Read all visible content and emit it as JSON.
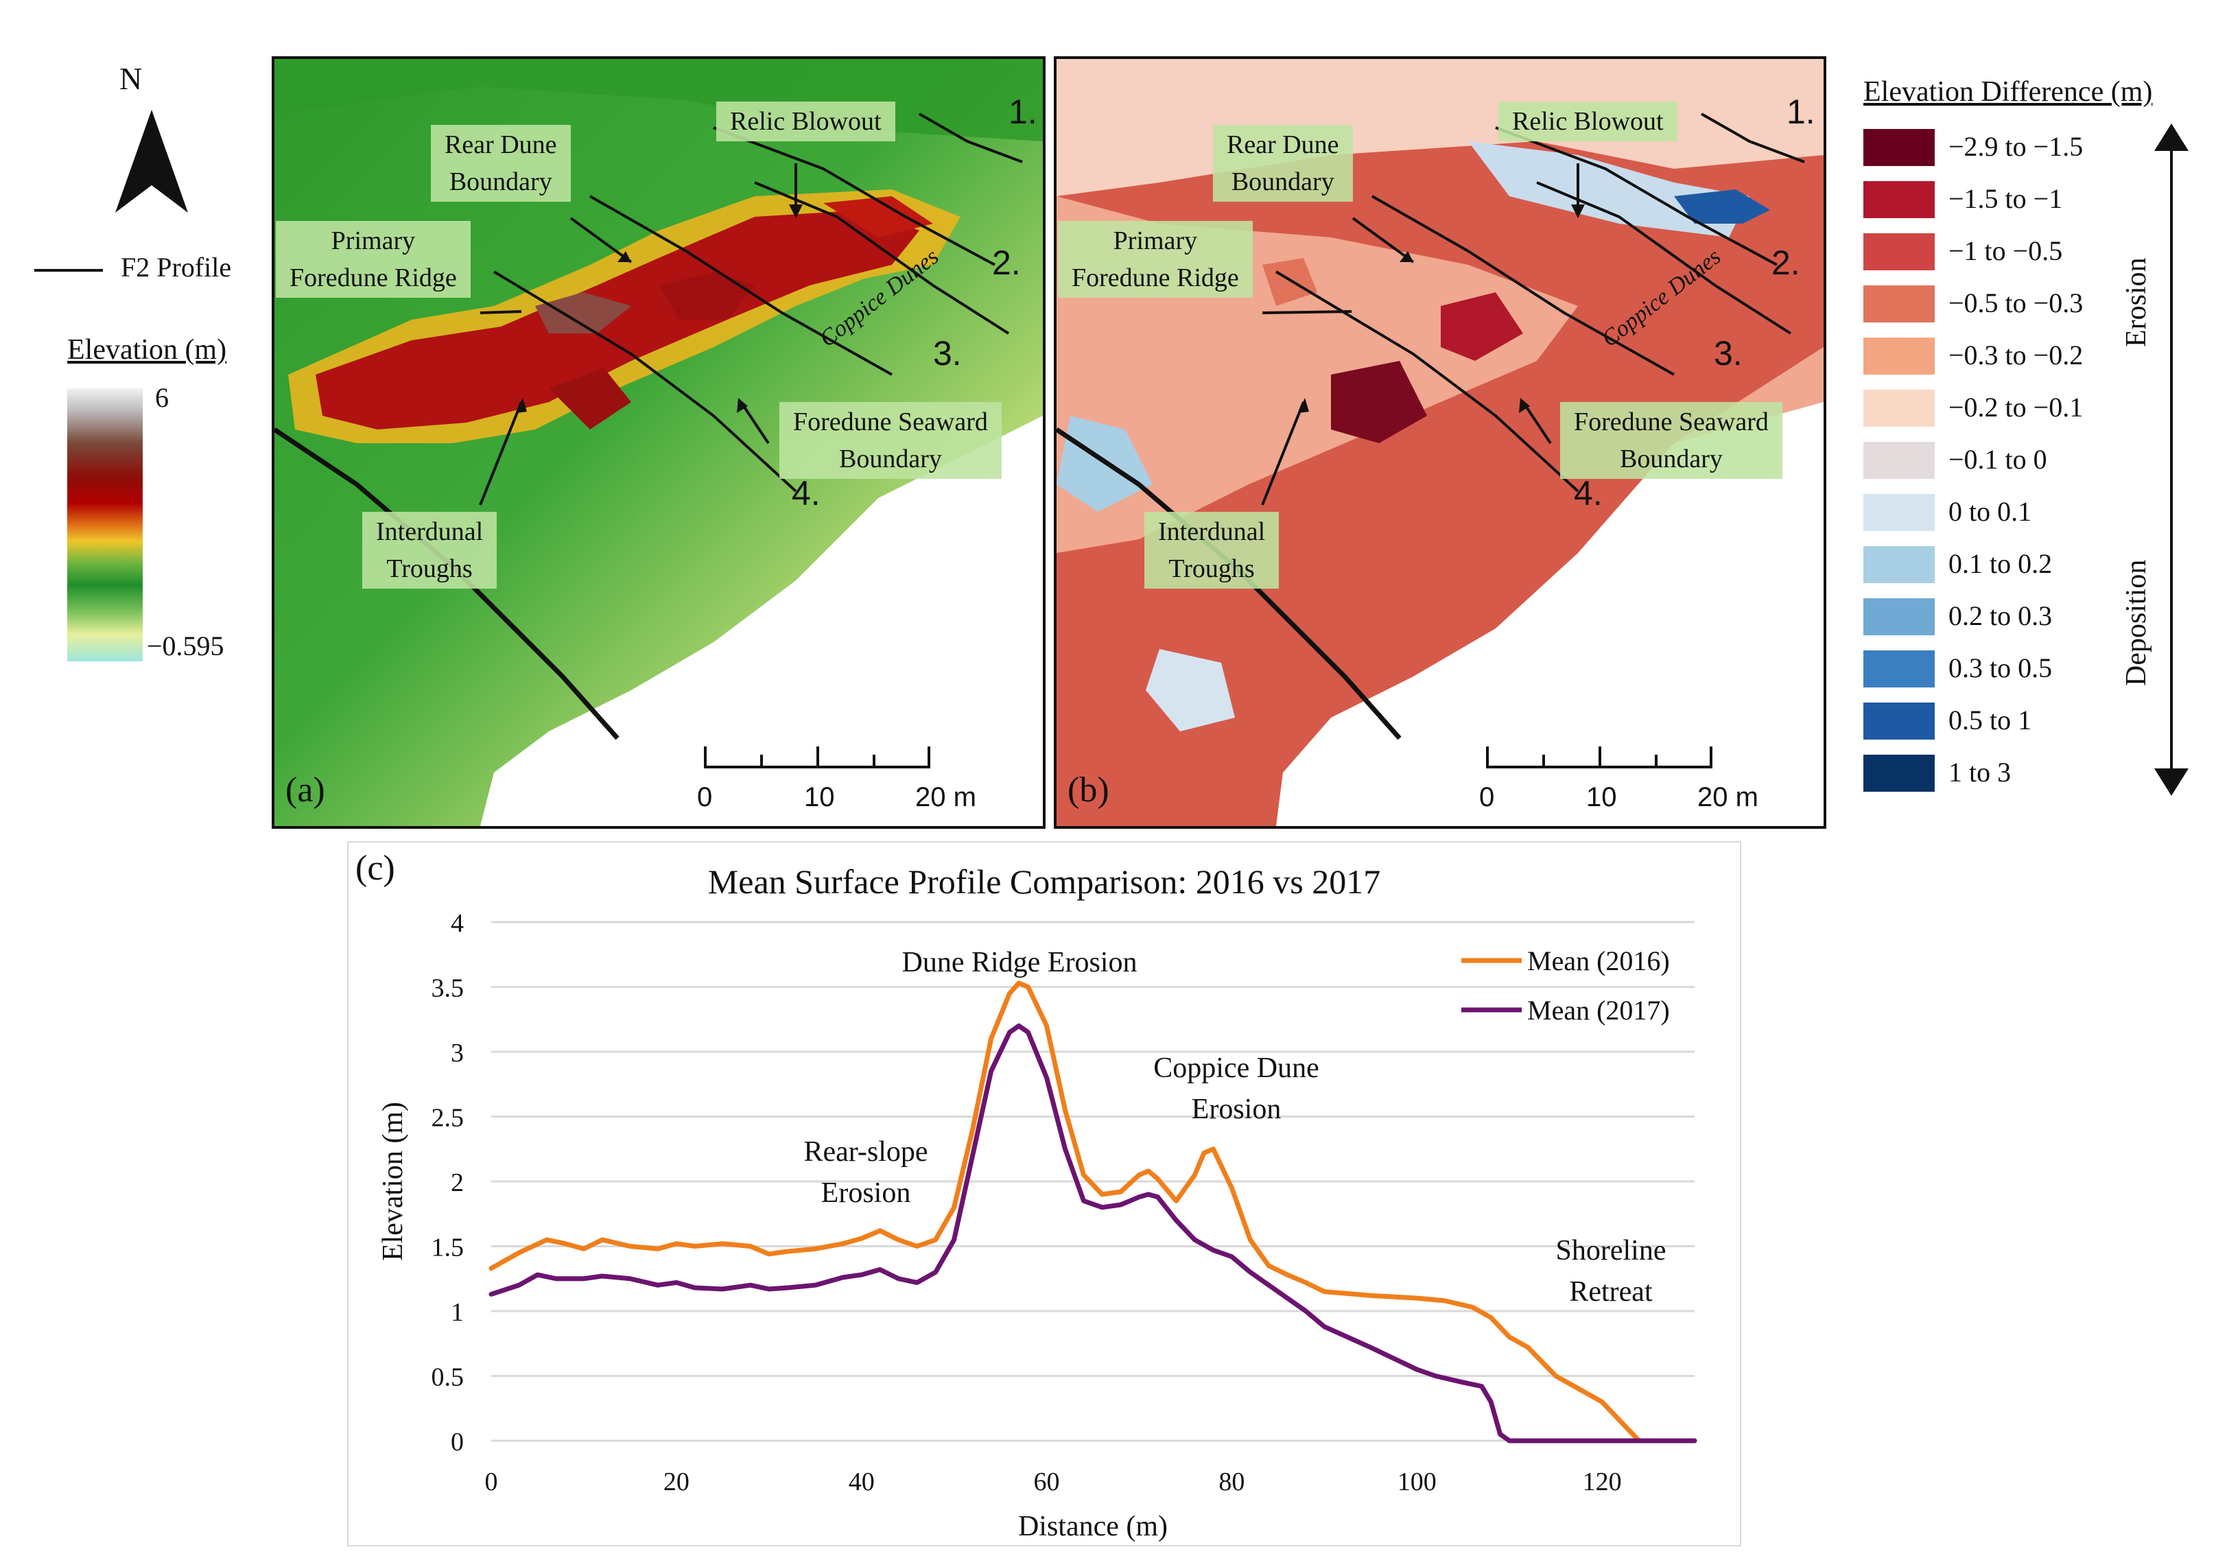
{
  "north": {
    "label": "N"
  },
  "f2_profile": {
    "label": "F2 Profile"
  },
  "elevation_legend": {
    "title": "Elevation (m)",
    "max": "6",
    "min": "−0.595"
  },
  "panel_a": {
    "letter": "(a)",
    "labels": {
      "relic_blowout": "Relic Blowout",
      "rear_dune_line1": "Rear Dune",
      "rear_dune_line2": "Boundary",
      "primary_line1": "Primary",
      "primary_line2": "Foredune Ridge",
      "coppice": "Coppice Dunes",
      "foredune_line1": "Foredune Seaward",
      "foredune_line2": "Boundary",
      "interdunal_line1": "Interdunal",
      "interdunal_line2": "Troughs"
    },
    "profiles": [
      "1.",
      "2.",
      "3.",
      "4."
    ],
    "scale": {
      "ticks": [
        "0",
        "10",
        "20 m"
      ]
    }
  },
  "panel_b": {
    "letter": "(b)",
    "labels": {
      "relic_blowout": "Relic Blowout",
      "rear_dune_line1": "Rear Dune",
      "rear_dune_line2": "Boundary",
      "primary_line1": "Primary",
      "primary_line2": "Foredune Ridge",
      "coppice": "Coppice Dunes",
      "foredune_line1": "Foredune Seaward",
      "foredune_line2": "Boundary",
      "interdunal_line1": "Interdunal",
      "interdunal_line2": "Troughs"
    },
    "profiles": [
      "1.",
      "2.",
      "3.",
      "4."
    ],
    "scale": {
      "ticks": [
        "0",
        "10",
        "20 m"
      ]
    }
  },
  "diff_legend": {
    "title": "Elevation Difference (m)",
    "erosion_label": "Erosion",
    "deposition_label": "Deposition",
    "classes": [
      {
        "label": "−2.9 to −1.5",
        "color": "#67001f"
      },
      {
        "label": "−1.5 to −1",
        "color": "#b2182b"
      },
      {
        "label": "−1 to −0.5",
        "color": "#cf4444"
      },
      {
        "label": "−0.5 to −0.3",
        "color": "#e0735a"
      },
      {
        "label": "−0.3 to −0.2",
        "color": "#f4a582"
      },
      {
        "label": "−0.2 to −0.1",
        "color": "#fad8c6"
      },
      {
        "label": "−0.1 to 0",
        "color": "#e4dcdc"
      },
      {
        "label": "0 to 0.1",
        "color": "#d6e4f0"
      },
      {
        "label": "0.1 to 0.2",
        "color": "#a9cfe5"
      },
      {
        "label": "0.2 to 0.3",
        "color": "#6fa9d4"
      },
      {
        "label": "0.3 to 0.5",
        "color": "#3a7fc0"
      },
      {
        "label": "0.5 to 1",
        "color": "#1e5aa3"
      },
      {
        "label": "1 to 3",
        "color": "#083264"
      }
    ]
  },
  "chart_data": {
    "type": "line",
    "panel_letter": "(c)",
    "title": "Mean Surface Profile Comparison: 2016 vs 2017",
    "xlabel": "Distance (m)",
    "ylabel": "Elevation (m)",
    "xlim": [
      0,
      130
    ],
    "ylim": [
      0,
      4
    ],
    "xticks": [
      0,
      20,
      40,
      60,
      80,
      100,
      120
    ],
    "yticks": [
      0,
      0.5,
      1,
      1.5,
      2,
      2.5,
      3,
      3.5,
      4
    ],
    "ytick_labels": [
      "0",
      "0.5",
      "1",
      "1.5",
      "2",
      "2.5",
      "3",
      "3.5",
      "4"
    ],
    "grid": "horizontal",
    "legend_position": "top-right",
    "series": [
      {
        "name": "Mean (2016)",
        "color": "#f07f1b",
        "x": [
          0,
          3,
          6,
          8,
          10,
          12,
          15,
          18,
          20,
          22,
          25,
          28,
          30,
          32,
          35,
          38,
          40,
          42,
          44,
          46,
          48,
          50,
          52,
          54,
          56,
          57,
          58,
          60,
          62,
          64,
          66,
          68,
          70,
          71,
          72,
          74,
          76,
          77,
          78,
          80,
          82,
          84,
          86,
          88,
          90,
          95,
          100,
          103,
          106,
          108,
          110,
          112,
          115,
          118,
          120,
          122,
          124,
          126,
          130
        ],
        "values": [
          1.33,
          1.45,
          1.55,
          1.52,
          1.48,
          1.55,
          1.5,
          1.48,
          1.52,
          1.5,
          1.52,
          1.5,
          1.44,
          1.46,
          1.48,
          1.52,
          1.56,
          1.62,
          1.55,
          1.5,
          1.55,
          1.8,
          2.4,
          3.1,
          3.45,
          3.53,
          3.5,
          3.2,
          2.55,
          2.05,
          1.9,
          1.92,
          2.05,
          2.08,
          2.02,
          1.85,
          2.05,
          2.22,
          2.25,
          1.95,
          1.55,
          1.35,
          1.28,
          1.22,
          1.15,
          1.12,
          1.1,
          1.08,
          1.03,
          0.95,
          0.8,
          0.72,
          0.5,
          0.38,
          0.3,
          0.15,
          0.0,
          0.0,
          0.0
        ]
      },
      {
        "name": "Mean (2017)",
        "color": "#6b1470",
        "x": [
          0,
          3,
          5,
          7,
          10,
          12,
          15,
          18,
          20,
          22,
          25,
          28,
          30,
          32,
          35,
          38,
          40,
          42,
          44,
          46,
          48,
          50,
          52,
          54,
          56,
          57,
          58,
          60,
          62,
          64,
          66,
          68,
          70,
          71,
          72,
          74,
          76,
          78,
          80,
          82,
          85,
          88,
          90,
          95,
          100,
          102,
          105,
          107,
          108,
          109,
          110,
          112,
          115,
          120,
          125,
          130
        ],
        "values": [
          1.13,
          1.2,
          1.28,
          1.25,
          1.25,
          1.27,
          1.25,
          1.2,
          1.22,
          1.18,
          1.17,
          1.2,
          1.17,
          1.18,
          1.2,
          1.26,
          1.28,
          1.32,
          1.25,
          1.22,
          1.3,
          1.55,
          2.2,
          2.85,
          3.15,
          3.2,
          3.15,
          2.8,
          2.25,
          1.85,
          1.8,
          1.82,
          1.88,
          1.9,
          1.88,
          1.7,
          1.55,
          1.47,
          1.42,
          1.3,
          1.15,
          1.0,
          0.88,
          0.72,
          0.55,
          0.5,
          0.45,
          0.42,
          0.3,
          0.05,
          0.0,
          0.0,
          0.0,
          0.0,
          0.0,
          0.0
        ]
      }
    ],
    "annotations": [
      {
        "text": "Dune Ridge Erosion"
      },
      {
        "text": "Rear-slope",
        "text2": "Erosion"
      },
      {
        "text": "Coppice Dune",
        "text2": "Erosion"
      },
      {
        "text": "Shoreline",
        "text2": "Retreat"
      }
    ]
  }
}
